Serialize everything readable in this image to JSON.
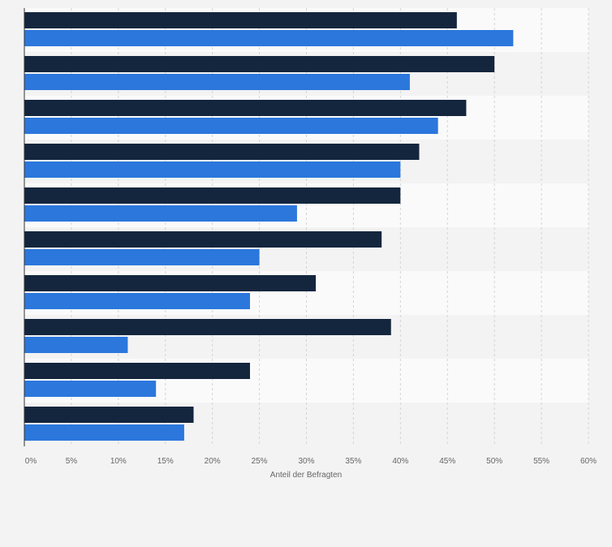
{
  "colors": {
    "background": "#f3f3f3",
    "band_light": "#fafafa",
    "band_dark": "#f3f3f3",
    "grid": "#d4d4d4",
    "axis": "#333333",
    "tick_text": "#666666",
    "series_dark": "#14263e",
    "series_blue": "#2b77dc"
  },
  "chart_data": {
    "type": "bar",
    "orientation": "horizontal",
    "title": "",
    "xlabel": "Anteil der Befragten",
    "ylabel": "",
    "xlim": [
      0,
      60
    ],
    "x_ticks": [
      "0%",
      "5%",
      "10%",
      "15%",
      "20%",
      "25%",
      "30%",
      "35%",
      "40%",
      "45%",
      "50%",
      "55%",
      "60%"
    ],
    "x_tick_values": [
      0,
      5,
      10,
      15,
      20,
      25,
      30,
      35,
      40,
      45,
      50,
      55,
      60
    ],
    "grid": true,
    "legend": "none",
    "categories": [
      "",
      "",
      "",
      "",
      "",
      "",
      "",
      "",
      "",
      ""
    ],
    "series": [
      {
        "color": "#14263e",
        "values": [
          46,
          50,
          47,
          42,
          40,
          38,
          31,
          39,
          24,
          18
        ]
      },
      {
        "color": "#2b77dc",
        "values": [
          52,
          41,
          44,
          40,
          29,
          25,
          24,
          11,
          14,
          17
        ]
      }
    ]
  }
}
